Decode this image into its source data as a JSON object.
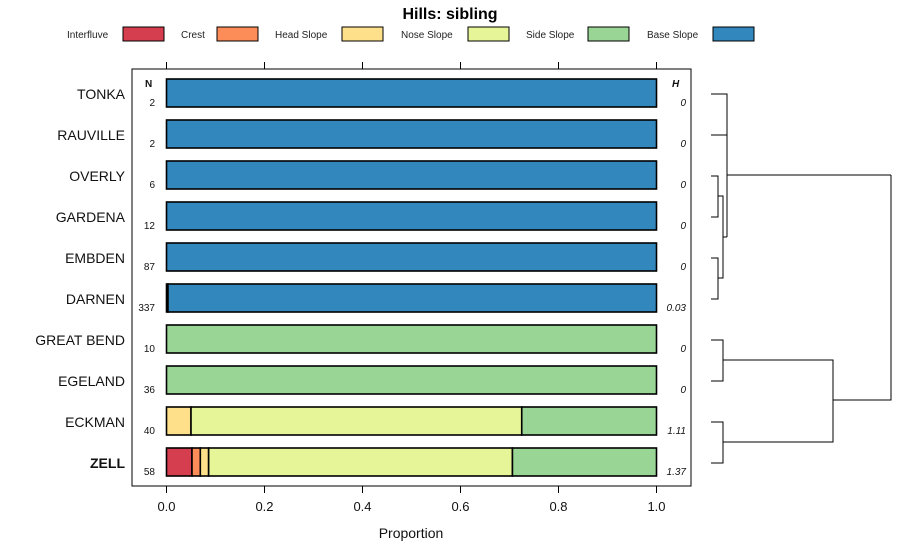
{
  "chart_data": {
    "type": "bar",
    "orientation": "horizontal",
    "stacked": true,
    "title": "Hills: sibling",
    "xlabel": "Proportion",
    "xlim": [
      0,
      1
    ],
    "xticks": [
      0.0,
      0.2,
      0.4,
      0.6,
      0.8,
      1.0
    ],
    "xtick_labels": [
      "0.0",
      "0.2",
      "0.4",
      "0.6",
      "0.8",
      "1.0"
    ],
    "n_header": "N",
    "h_header": "H",
    "legend": [
      {
        "name": "Interfluve",
        "color": "#d53e4f"
      },
      {
        "name": "Crest",
        "color": "#fc8d59"
      },
      {
        "name": "Head Slope",
        "color": "#fee08b"
      },
      {
        "name": "Nose Slope",
        "color": "#e6f598"
      },
      {
        "name": "Side Slope",
        "color": "#99d594"
      },
      {
        "name": "Base Slope",
        "color": "#3288bd"
      }
    ],
    "categories": [
      "TONKA",
      "RAUVILLE",
      "OVERLY",
      "GARDENA",
      "EMBDEN",
      "DARNEN",
      "GREAT BEND",
      "EGELAND",
      "ECKMAN",
      "ZELL"
    ],
    "highlight": "ZELL",
    "n": [
      "2",
      "2",
      "6",
      "12",
      "87",
      "337",
      "10",
      "36",
      "40",
      "58"
    ],
    "h": [
      "0",
      "0",
      "0",
      "0",
      "0",
      "0.03",
      "0",
      "0",
      "1.11",
      "1.37"
    ],
    "series": [
      {
        "name": "Interfluve",
        "values": [
          0,
          0,
          0,
          0,
          0,
          0.003,
          0,
          0,
          0,
          0.052
        ]
      },
      {
        "name": "Crest",
        "values": [
          0,
          0,
          0,
          0,
          0,
          0,
          0,
          0,
          0,
          0.017
        ]
      },
      {
        "name": "Head Slope",
        "values": [
          0,
          0,
          0,
          0,
          0,
          0,
          0,
          0,
          0.05,
          0.017
        ]
      },
      {
        "name": "Nose Slope",
        "values": [
          0,
          0,
          0,
          0,
          0,
          0,
          0,
          0,
          0.675,
          0.62
        ]
      },
      {
        "name": "Side Slope",
        "values": [
          0,
          0,
          0,
          0,
          0,
          0,
          1,
          1,
          0.275,
          0.294
        ]
      },
      {
        "name": "Base Slope",
        "values": [
          1,
          1,
          1,
          1,
          1,
          0.997,
          0,
          0,
          0,
          0
        ]
      }
    ],
    "dendrogram": "hierarchical clustering of the soil series"
  }
}
